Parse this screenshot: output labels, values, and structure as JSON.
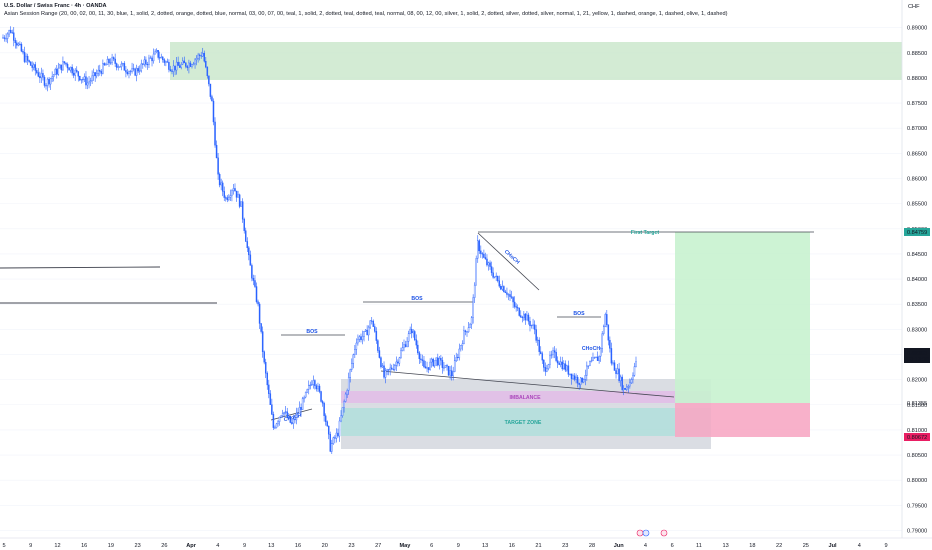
{
  "header": {
    "title": "U.S. Dollar / Swiss Franc · 4h · OANDA",
    "indicator": "Asian Session Range (20, 00, 02, 00, 11, 30, blue, 1, solid, 2, dotted, orange, dotted, blue, normal, 03, 00, 07, 00, teal, 1, solid, 2, dotted, teal, dotted, teal, normal, 08, 00, 12, 00, silver, 1, solid, 2, dotted, silver, dotted, silver, normal, 1, 21, yellow, 1, dashed, orange, 1, dashed, olive, 1, dashed)"
  },
  "colors": {
    "candle": "#2962ff",
    "pattern_line": "#434651",
    "label_blue": "#1e53e5",
    "target_green": "#26a69a",
    "supply_zone": "#c8e6c9",
    "profit_zone": "#c8f2cf",
    "loss_zone": "#f7a8c4",
    "gray_zone": "#d1d4dc",
    "pink_zone": "#e1bee7",
    "teal_zone": "#b2dfdb",
    "current_price_bg": "#131722",
    "stop_price_bg": "#e91e63"
  },
  "chart_data": {
    "type": "candlestick",
    "title": "U.S. Dollar / Swiss Franc · 4h · OANDA",
    "y_unit": "CHF",
    "ylim": [
      0.7885,
      0.8955
    ],
    "y_ticks": [
      "0.89000",
      "0.88500",
      "0.88000",
      "0.87500",
      "0.87000",
      "0.86500",
      "0.86000",
      "0.85500",
      "0.85000",
      "0.84500",
      "0.84000",
      "0.83500",
      "0.83000",
      "0.82500",
      "0.82000",
      "0.81500",
      "0.81000",
      "0.80500",
      "0.80000",
      "0.79500",
      "0.79000"
    ],
    "x_ticks": [
      "5",
      "9",
      "12",
      "16",
      "19",
      "23",
      "26",
      "Apr",
      "4",
      "9",
      "13",
      "16",
      "20",
      "23",
      "27",
      "May",
      "6",
      "9",
      "13",
      "16",
      "21",
      "23",
      "28",
      "Jun",
      "4",
      "6",
      "11",
      "13",
      "18",
      "22",
      "25",
      "Jul",
      "4",
      "9"
    ],
    "price_path": [
      {
        "bar": 0,
        "price": 0.888
      },
      {
        "bar": 5,
        "price": 0.8895
      },
      {
        "bar": 14,
        "price": 0.884
      },
      {
        "bar": 28,
        "price": 0.879
      },
      {
        "bar": 40,
        "price": 0.883
      },
      {
        "bar": 55,
        "price": 0.879
      },
      {
        "bar": 70,
        "price": 0.8835
      },
      {
        "bar": 85,
        "price": 0.881
      },
      {
        "bar": 100,
        "price": 0.8848
      },
      {
        "bar": 110,
        "price": 0.882
      },
      {
        "bar": 122,
        "price": 0.883
      },
      {
        "bar": 130,
        "price": 0.885
      },
      {
        "bar": 136,
        "price": 0.875
      },
      {
        "bar": 140,
        "price": 0.86
      },
      {
        "bar": 145,
        "price": 0.856
      },
      {
        "bar": 150,
        "price": 0.8585
      },
      {
        "bar": 155,
        "price": 0.8545
      },
      {
        "bar": 160,
        "price": 0.844
      },
      {
        "bar": 166,
        "price": 0.8345
      },
      {
        "bar": 170,
        "price": 0.823
      },
      {
        "bar": 176,
        "price": 0.8105
      },
      {
        "bar": 182,
        "price": 0.814
      },
      {
        "bar": 188,
        "price": 0.811
      },
      {
        "bar": 196,
        "price": 0.816
      },
      {
        "bar": 202,
        "price": 0.8205
      },
      {
        "bar": 208,
        "price": 0.8155
      },
      {
        "bar": 213,
        "price": 0.8065
      },
      {
        "bar": 218,
        "price": 0.8095
      },
      {
        "bar": 224,
        "price": 0.8185
      },
      {
        "bar": 230,
        "price": 0.828
      },
      {
        "bar": 236,
        "price": 0.829
      },
      {
        "bar": 240,
        "price": 0.832
      },
      {
        "bar": 248,
        "price": 0.8205
      },
      {
        "bar": 256,
        "price": 0.8235
      },
      {
        "bar": 266,
        "price": 0.83
      },
      {
        "bar": 274,
        "price": 0.822
      },
      {
        "bar": 282,
        "price": 0.824
      },
      {
        "bar": 292,
        "price": 0.821
      },
      {
        "bar": 300,
        "price": 0.829
      },
      {
        "bar": 305,
        "price": 0.832
      },
      {
        "bar": 309,
        "price": 0.847
      },
      {
        "bar": 313,
        "price": 0.844
      },
      {
        "bar": 318,
        "price": 0.8415
      },
      {
        "bar": 322,
        "price": 0.8395
      },
      {
        "bar": 328,
        "price": 0.8375
      },
      {
        "bar": 334,
        "price": 0.834
      },
      {
        "bar": 340,
        "price": 0.8325
      },
      {
        "bar": 346,
        "price": 0.83
      },
      {
        "bar": 352,
        "price": 0.822
      },
      {
        "bar": 358,
        "price": 0.825
      },
      {
        "bar": 364,
        "price": 0.823
      },
      {
        "bar": 370,
        "price": 0.821
      },
      {
        "bar": 376,
        "price": 0.8195
      },
      {
        "bar": 382,
        "price": 0.823
      },
      {
        "bar": 388,
        "price": 0.8245
      },
      {
        "bar": 392,
        "price": 0.833
      },
      {
        "bar": 396,
        "price": 0.8235
      },
      {
        "bar": 400,
        "price": 0.8215
      },
      {
        "bar": 404,
        "price": 0.818
      },
      {
        "bar": 408,
        "price": 0.8195
      },
      {
        "bar": 412,
        "price": 0.8236
      }
    ],
    "last_bar_index": 412,
    "current_price": "0.82363",
    "countdown": "03:13:39",
    "target_price": "0.84759",
    "stop_price": "0.80672",
    "entry_price": "0.81355",
    "annotations": {
      "first_target": "First Target",
      "bos_labels": [
        "BOS",
        "BOS",
        "BOS"
      ],
      "choch_labels": [
        "CHoCH",
        "CHoCH",
        "CHoCH"
      ],
      "imbalance": "IMBALANCE",
      "target_zone": "TARGET ZONE"
    }
  }
}
